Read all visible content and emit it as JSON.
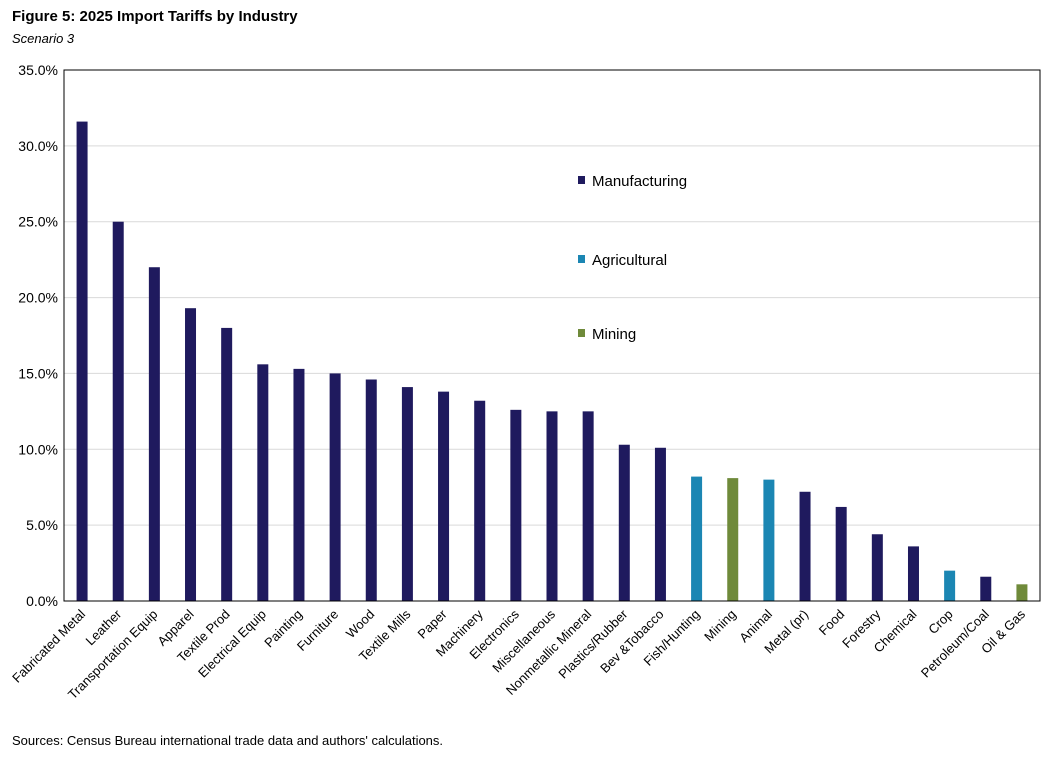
{
  "chart_data": {
    "type": "bar",
    "title": "Figure 5: 2025 Import Tariffs by Industry",
    "subtitle": "Scenario 3",
    "source": "Sources: Census Bureau international trade data and authors' calculations.",
    "xlabel": "",
    "ylabel": "",
    "ylim": [
      0,
      35
    ],
    "yticks": [
      "0.0%",
      "5.0%",
      "10.0%",
      "15.0%",
      "20.0%",
      "25.0%",
      "30.0%",
      "35.0%"
    ],
    "grid": true,
    "legend": [
      {
        "name": "Manufacturing",
        "color": "#1f1a5e"
      },
      {
        "name": "Agricultural",
        "color": "#1b86b3"
      },
      {
        "name": "Mining",
        "color": "#6f8a3a"
      }
    ],
    "categories": [
      "Fabricated Metal",
      "Leather",
      "Transportation Equip",
      "Apparel",
      "Textile Prod",
      "Electrical Equip",
      "Painting",
      "Furniture",
      "Wood",
      "Textile Mills",
      "Paper",
      "Machinery",
      "Electronics",
      "Miscellaneous",
      "Nonmetallic Mineral",
      "Plastics/Rubber",
      "Bev &Tobacco",
      "Fish/Hunting",
      "Mining",
      "Animal",
      "Metal (pr)",
      "Food",
      "Forestry",
      "Chemical",
      "Crop",
      "Petroleum/Coal",
      "Oil & Gas"
    ],
    "values": [
      31.6,
      25.0,
      22.0,
      19.3,
      18.0,
      15.6,
      15.3,
      15.0,
      14.6,
      14.1,
      13.8,
      13.2,
      12.6,
      12.5,
      12.5,
      10.3,
      10.1,
      8.2,
      8.1,
      8.0,
      7.2,
      6.2,
      4.4,
      3.6,
      2.0,
      1.6,
      1.1
    ],
    "groups": [
      "Manufacturing",
      "Manufacturing",
      "Manufacturing",
      "Manufacturing",
      "Manufacturing",
      "Manufacturing",
      "Manufacturing",
      "Manufacturing",
      "Manufacturing",
      "Manufacturing",
      "Manufacturing",
      "Manufacturing",
      "Manufacturing",
      "Manufacturing",
      "Manufacturing",
      "Manufacturing",
      "Manufacturing",
      "Agricultural",
      "Mining",
      "Agricultural",
      "Manufacturing",
      "Manufacturing",
      "Manufacturing",
      "Manufacturing",
      "Agricultural",
      "Manufacturing",
      "Mining"
    ]
  }
}
